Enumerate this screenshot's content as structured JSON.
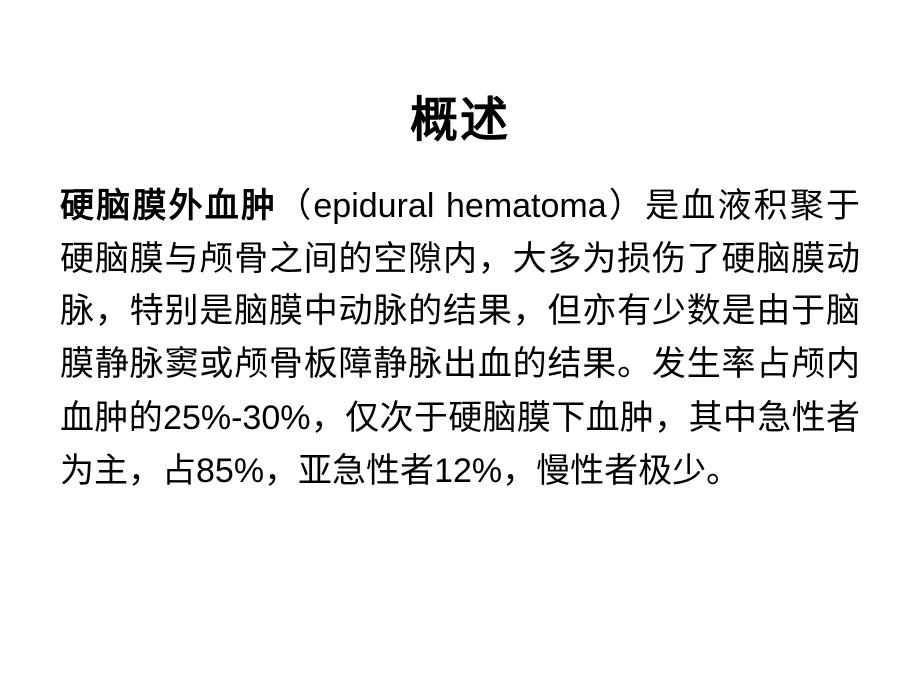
{
  "slide": {
    "title": "概述",
    "term": "硬脑膜外血肿",
    "open_paren": "（",
    "latin": "epidural hematoma",
    "close_paren": "）",
    "seg1": "是血液积聚于硬脑膜与颅骨之间的空隙内，大多为损伤了硬脑膜动脉，特别是脑膜中动脉的结果，但亦有少数是由于脑膜静脉窦或颅骨板障静脉出血的结果。发生率占颅内血肿的",
    "pct1": "25%-30%",
    "seg2": "，仅次于硬脑膜下血肿，其中急性者为主，占",
    "pct2": "85%",
    "seg3": "，亚急性者",
    "pct3": "12%",
    "seg4": "，慢性者极少。",
    "title_fontsize": 48,
    "body_fontsize": 34,
    "text_color": "#000000",
    "background_color": "#ffffff"
  }
}
